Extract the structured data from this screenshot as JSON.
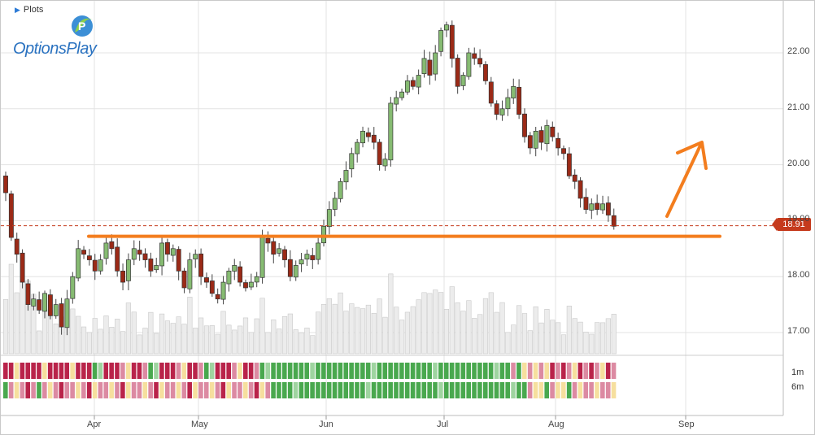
{
  "header": {
    "plots_label": "Plots"
  },
  "logo": {
    "text": "OptionsPlay",
    "trademark": "®"
  },
  "price_tag": "18.91",
  "heatmap_labels": [
    "1m",
    "6m"
  ],
  "colors": {
    "up": "#86bb72",
    "down": "#9b2a17",
    "volume": "#ececec",
    "trend": "#f37d1e",
    "price_tag": "#c53a1c",
    "heat_red": "#b9234a",
    "heat_pink": "#dc8aa2",
    "heat_yellow": "#f6df9e",
    "heat_green": "#49a84e",
    "heat_lightgreen": "#9fd4a0"
  },
  "chart_data": {
    "type": "candlestick",
    "title": "",
    "xlabel": "",
    "ylabel": "",
    "x_ticks": [
      "Apr",
      "May",
      "Jun",
      "Jul",
      "Aug",
      "Sep"
    ],
    "y_ticks": [
      "17.00",
      "18.00",
      "19.00",
      "20.00",
      "21.00",
      "22.00"
    ],
    "ylim": [
      16.6,
      22.9
    ],
    "last_price": 18.91,
    "support_level": 18.72,
    "grid": true,
    "closes": [
      19.5,
      18.7,
      18.4,
      17.9,
      17.5,
      17.6,
      17.4,
      17.7,
      17.3,
      17.5,
      17.1,
      17.6,
      18.0,
      18.5,
      18.4,
      18.3,
      18.1,
      18.3,
      18.6,
      18.5,
      18.1,
      17.9,
      18.3,
      18.5,
      18.4,
      18.3,
      18.1,
      18.2,
      18.6,
      18.4,
      18.5,
      18.1,
      17.8,
      18.3,
      18.4,
      18.0,
      17.9,
      17.7,
      17.6,
      17.9,
      18.1,
      18.2,
      17.9,
      17.8,
      17.9,
      18.0,
      18.7,
      18.6,
      18.4,
      18.5,
      18.3,
      18.0,
      18.2,
      18.3,
      18.4,
      18.3,
      18.6,
      18.9,
      19.2,
      19.4,
      19.7,
      19.9,
      20.2,
      20.4,
      20.6,
      20.5,
      20.4,
      20.0,
      20.1,
      21.1,
      21.2,
      21.3,
      21.5,
      21.4,
      21.6,
      21.9,
      21.6,
      22.0,
      22.4,
      22.5,
      21.9,
      21.4,
      21.6,
      22.0,
      21.9,
      21.8,
      21.5,
      21.1,
      20.9,
      21.0,
      21.2,
      21.4,
      20.9,
      20.5,
      20.3,
      20.6,
      20.4,
      20.7,
      20.5,
      20.3,
      20.2,
      19.8,
      19.7,
      19.4,
      19.2,
      19.3,
      19.2,
      19.3,
      19.1,
      18.9
    ],
    "heatmap": {
      "rows": [
        "1m",
        "6m"
      ]
    }
  }
}
